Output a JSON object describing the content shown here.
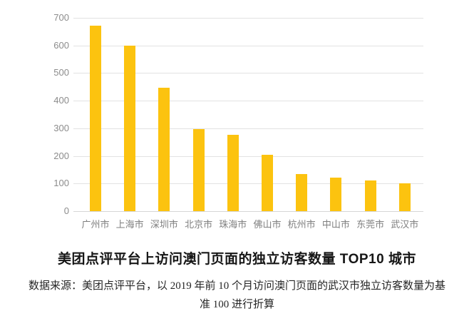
{
  "chart_data": {
    "type": "bar",
    "title": "美团点评平台上访问澳门页面的独立访客数量 TOP10 城市",
    "categories": [
      "广州市",
      "上海市",
      "深圳市",
      "北京市",
      "珠海市",
      "佛山市",
      "杭州市",
      "中山市",
      "东莞市",
      "武汉市"
    ],
    "values": [
      672,
      600,
      448,
      297,
      277,
      205,
      135,
      122,
      110,
      100
    ],
    "xlabel": "",
    "ylabel": "",
    "ylim": [
      0,
      700
    ],
    "yticks": [
      0,
      100,
      200,
      300,
      400,
      500,
      600,
      700
    ],
    "grid": true,
    "legend": false,
    "bar_color": "#FCC30F"
  },
  "note": {
    "line1": "数据来源：美团点评平台，以 2019 年前 10 个月访问澳门页面的武汉市独立访客数量为基",
    "line2": "准 100 进行折算"
  },
  "colors": {
    "bar": "#FCC30F",
    "gridline": "#E2E2E2",
    "y_axis_label": "#8C8C8C",
    "x_axis_label": "#7F7F7F",
    "title": "#161616",
    "note": "#262626",
    "background": "#FFFFFF"
  }
}
